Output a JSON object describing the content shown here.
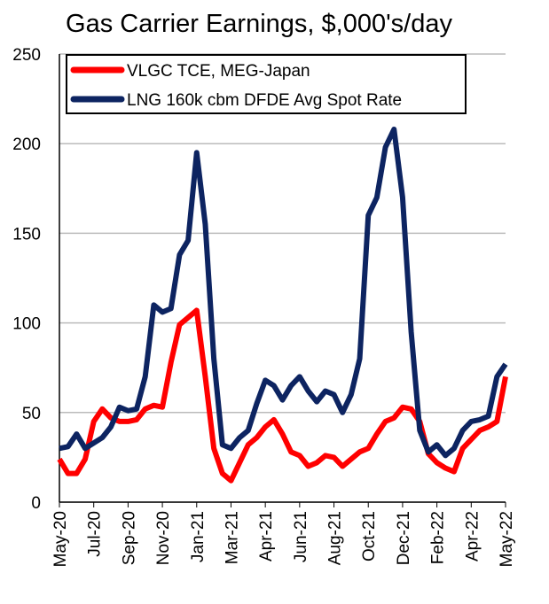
{
  "chart_data": {
    "type": "line",
    "title": "Gas Carrier Earnings, $,000's/day",
    "categories": [
      "May-20",
      null,
      null,
      null,
      "Jul-20",
      null,
      null,
      null,
      "Sep-20",
      null,
      null,
      null,
      "Nov-20",
      null,
      null,
      null,
      "Jan-21",
      null,
      null,
      null,
      "Mar-21",
      null,
      null,
      null,
      "Apr-21",
      null,
      null,
      null,
      "Jun-21",
      null,
      null,
      null,
      "Aug-21",
      null,
      null,
      null,
      "Oct-21",
      null,
      null,
      null,
      "Dec-21",
      null,
      null,
      null,
      "Feb-22",
      null,
      null,
      null,
      "Apr-22",
      null,
      null,
      null,
      "May-22"
    ],
    "series": [
      {
        "name": "VLGC TCE, MEG-Japan",
        "color": "#ff0000",
        "values": [
          24,
          16,
          16,
          24,
          45,
          52,
          47,
          45,
          45,
          46,
          52,
          54,
          53,
          78,
          99,
          103,
          107,
          70,
          30,
          16,
          12,
          22,
          32,
          36,
          42,
          46,
          38,
          28,
          26,
          20,
          22,
          26,
          25,
          20,
          24,
          28,
          30,
          38,
          45,
          47,
          53,
          52,
          45,
          27,
          22,
          19,
          17,
          30,
          35,
          40,
          42,
          45,
          70
        ]
      },
      {
        "name": "LNG 160k cbm DFDE Avg Spot Rate",
        "color": "#0d2461",
        "values": [
          30,
          31,
          38,
          30,
          33,
          36,
          42,
          53,
          51,
          52,
          70,
          110,
          106,
          108,
          138,
          146,
          195,
          155,
          80,
          32,
          30,
          36,
          40,
          55,
          68,
          65,
          57,
          65,
          70,
          62,
          56,
          62,
          60,
          50,
          60,
          80,
          160,
          170,
          198,
          208,
          170,
          95,
          40,
          28,
          32,
          26,
          30,
          40,
          45,
          46,
          48,
          70,
          77
        ]
      }
    ],
    "ylim": [
      0,
      250
    ],
    "yticks": [
      0,
      50,
      100,
      150,
      200,
      250
    ],
    "grid": true,
    "legend": "top-left"
  }
}
